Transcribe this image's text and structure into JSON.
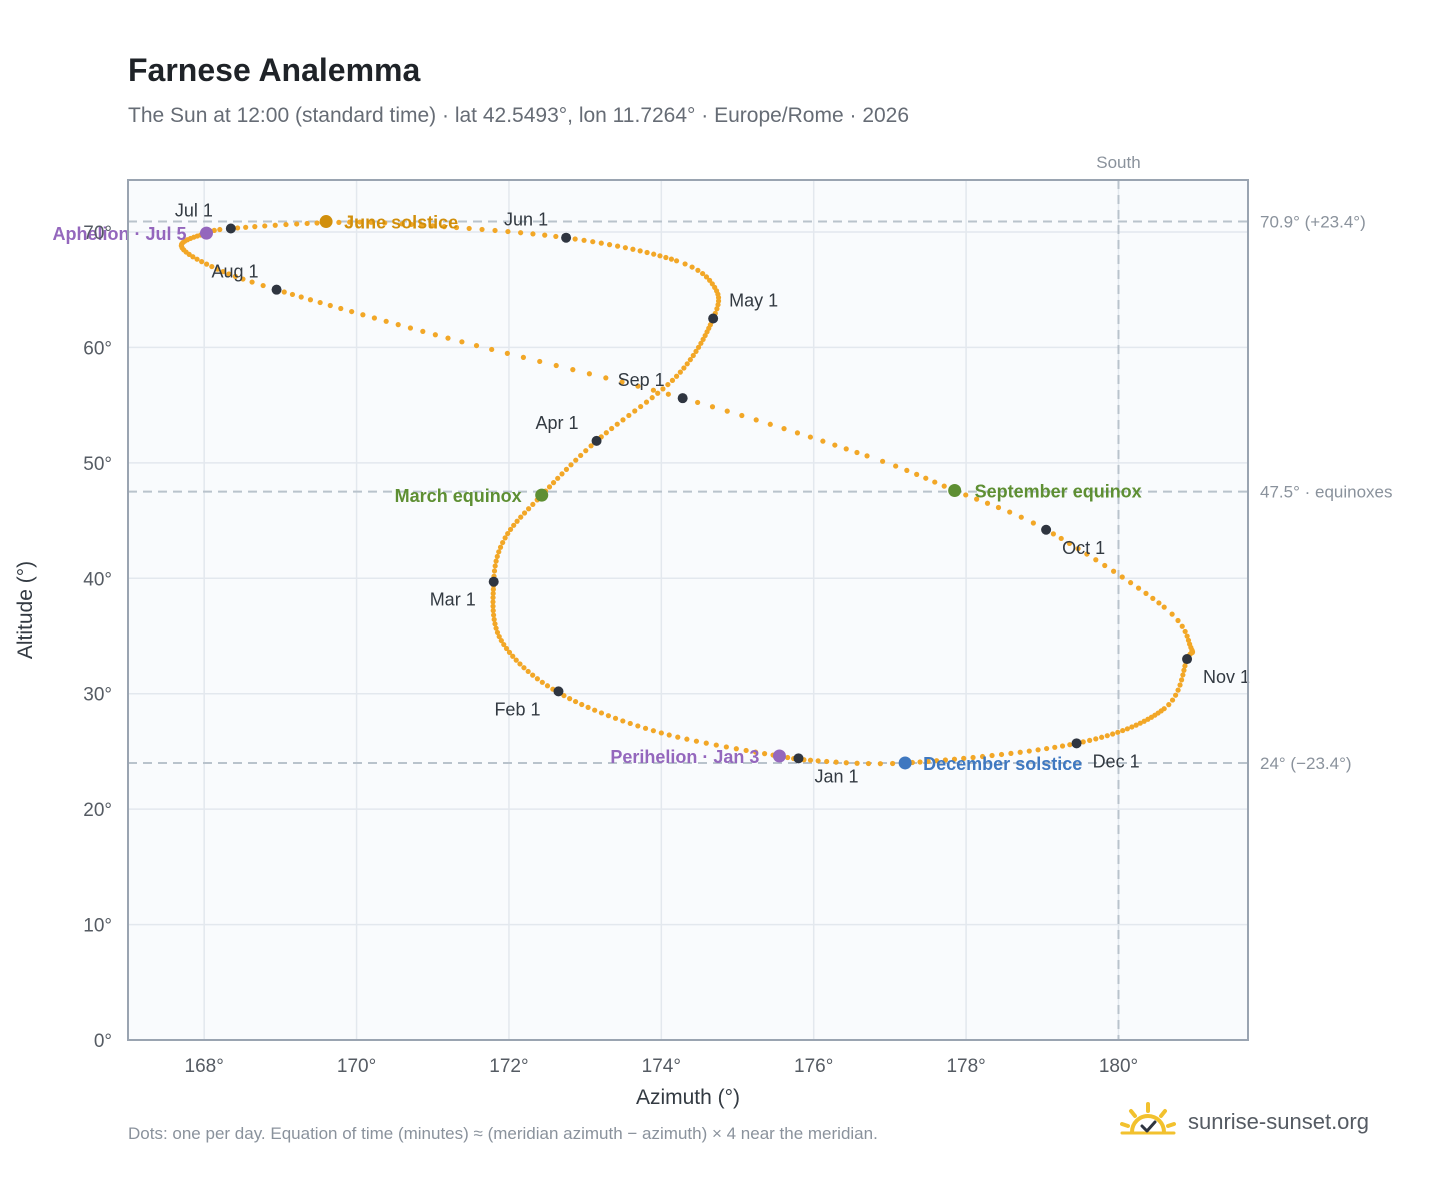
{
  "title": "Farnese Analemma",
  "subtitle": "The Sun at 12:00 (standard time) · lat 42.5493°, lon 11.7264° · Europe/Rome · 2026",
  "footnote": "Dots: one per day. Equation of time (minutes) ≈ (meridian azimuth − azimuth) × 4 near the meridian.",
  "brand": {
    "text": "sunrise-sunset.org",
    "icon": "sun-check-icon"
  },
  "colors": {
    "curve": "#f2a727",
    "month_dot": "#2f3540",
    "june_solstice": "#d18f0c",
    "december_solstice": "#3f78c0",
    "equinox": "#5e8f33",
    "apsis": "#9467bd",
    "reference_line": "#b9c3cc",
    "plot_background": "#f9fbfd"
  },
  "chart_data": {
    "type": "scatter",
    "xlabel": "Azimuth (°)",
    "ylabel": "Altitude (°)",
    "xlim": [
      167,
      181.7
    ],
    "ylim": [
      0,
      74.5
    ],
    "x_ticks": [
      168,
      170,
      172,
      174,
      176,
      178,
      180
    ],
    "x_tick_labels": [
      "168°",
      "170°",
      "172°",
      "174°",
      "176°",
      "178°",
      "180°"
    ],
    "y_ticks": [
      0,
      10,
      20,
      30,
      40,
      50,
      60,
      70
    ],
    "y_tick_labels": [
      "0°",
      "10°",
      "20°",
      "30°",
      "40°",
      "50°",
      "60°",
      "70°"
    ],
    "grid": true,
    "meridian": {
      "x": 180,
      "label": "South"
    },
    "reference_lines": [
      {
        "y": 70.9,
        "label": "70.9° (+23.4°)"
      },
      {
        "y": 47.5,
        "label": "47.5° · equinoxes"
      },
      {
        "y": 24.0,
        "label": "24° (−23.4°)"
      }
    ],
    "daily_path": {
      "name": "Dots: one per day",
      "anchors": [
        {
          "day": 0,
          "az": 175.8,
          "alt": 24.3
        },
        {
          "day": 16,
          "az": 174.0,
          "alt": 26.6
        },
        {
          "day": 31,
          "az": 172.65,
          "alt": 30.1
        },
        {
          "day": 45,
          "az": 171.9,
          "alt": 34.6
        },
        {
          "day": 59,
          "az": 171.8,
          "alt": 39.7
        },
        {
          "day": 68,
          "az": 171.95,
          "alt": 43.5
        },
        {
          "day": 78,
          "az": 172.43,
          "alt": 47.2
        },
        {
          "day": 90,
          "az": 173.15,
          "alt": 51.9
        },
        {
          "day": 105,
          "az": 174.2,
          "alt": 57.5
        },
        {
          "day": 120,
          "az": 174.68,
          "alt": 62.5
        },
        {
          "day": 128,
          "az": 174.7,
          "alt": 65.2
        },
        {
          "day": 136,
          "az": 174.2,
          "alt": 67.5
        },
        {
          "day": 151,
          "az": 172.75,
          "alt": 69.5
        },
        {
          "day": 165,
          "az": 170.6,
          "alt": 70.7
        },
        {
          "day": 171,
          "az": 169.6,
          "alt": 70.8
        },
        {
          "day": 181,
          "az": 168.35,
          "alt": 70.3
        },
        {
          "day": 185,
          "az": 168.03,
          "alt": 69.9
        },
        {
          "day": 195,
          "az": 167.7,
          "alt": 68.8
        },
        {
          "day": 204,
          "az": 168.1,
          "alt": 67.0
        },
        {
          "day": 212,
          "az": 168.95,
          "alt": 65.0
        },
        {
          "day": 228,
          "az": 171.2,
          "alt": 60.8
        },
        {
          "day": 243,
          "az": 174.28,
          "alt": 55.6
        },
        {
          "day": 257,
          "az": 176.7,
          "alt": 50.6
        },
        {
          "day": 265,
          "az": 177.85,
          "alt": 47.6
        },
        {
          "day": 273,
          "az": 179.05,
          "alt": 44.2
        },
        {
          "day": 288,
          "az": 180.6,
          "alt": 37.5
        },
        {
          "day": 296,
          "az": 180.95,
          "alt": 34.0
        },
        {
          "day": 304,
          "az": 180.9,
          "alt": 33.0
        },
        {
          "day": 315,
          "az": 180.6,
          "alt": 28.7
        },
        {
          "day": 334,
          "az": 179.45,
          "alt": 25.7
        },
        {
          "day": 354,
          "az": 177.2,
          "alt": 24.0
        },
        {
          "day": 365,
          "az": 175.8,
          "alt": 24.3
        }
      ]
    },
    "month_markers": [
      {
        "label": "Jan 1",
        "az": 175.8,
        "alt": 24.4,
        "anchor": "start",
        "dx": 16,
        "dy": 24
      },
      {
        "label": "Feb 1",
        "az": 172.65,
        "alt": 30.2,
        "anchor": "end",
        "dx": -18,
        "dy": 24
      },
      {
        "label": "Mar 1",
        "az": 171.8,
        "alt": 39.7,
        "anchor": "end",
        "dx": -18,
        "dy": 24
      },
      {
        "label": "Apr 1",
        "az": 173.15,
        "alt": 51.9,
        "anchor": "end",
        "dx": -18,
        "dy": -12
      },
      {
        "label": "May 1",
        "az": 174.68,
        "alt": 62.5,
        "anchor": "start",
        "dx": 16,
        "dy": -12
      },
      {
        "label": "Jun 1",
        "az": 172.75,
        "alt": 69.5,
        "anchor": "end",
        "dx": -18,
        "dy": -12
      },
      {
        "label": "Jul 1",
        "az": 168.35,
        "alt": 70.3,
        "anchor": "end",
        "dx": -18,
        "dy": -12
      },
      {
        "label": "Aug 1",
        "az": 168.95,
        "alt": 65.0,
        "anchor": "end",
        "dx": -18,
        "dy": -12
      },
      {
        "label": "Sep 1",
        "az": 174.28,
        "alt": 55.6,
        "anchor": "end",
        "dx": -18,
        "dy": -12
      },
      {
        "label": "Oct 1",
        "az": 179.05,
        "alt": 44.2,
        "anchor": "start",
        "dx": 16,
        "dy": 24
      },
      {
        "label": "Nov 1",
        "az": 180.9,
        "alt": 33.0,
        "anchor": "start",
        "dx": 16,
        "dy": 24
      },
      {
        "label": "Dec 1",
        "az": 179.45,
        "alt": 25.7,
        "anchor": "start",
        "dx": 16,
        "dy": 24
      }
    ],
    "events": [
      {
        "label": "June solstice",
        "az": 169.6,
        "alt": 70.9,
        "color": "#d18f0c",
        "anchor": "start",
        "dx": 18,
        "dy": 7
      },
      {
        "label": "December solstice",
        "az": 177.2,
        "alt": 24.0,
        "color": "#3f78c0",
        "anchor": "start",
        "dx": 18,
        "dy": 7
      },
      {
        "label": "March equinox",
        "az": 172.43,
        "alt": 47.2,
        "color": "#5e8f33",
        "anchor": "end",
        "dx": -20,
        "dy": 7
      },
      {
        "label": "September equinox",
        "az": 177.85,
        "alt": 47.6,
        "color": "#5e8f33",
        "anchor": "start",
        "dx": 20,
        "dy": 7
      },
      {
        "label": "Perihelion · Jan 3",
        "az": 175.55,
        "alt": 24.6,
        "color": "#9467bd",
        "anchor": "end",
        "dx": -20,
        "dy": 7
      },
      {
        "label": "Aphelion · Jul 5",
        "az": 168.03,
        "alt": 69.9,
        "color": "#9467bd",
        "anchor": "end",
        "dx": -20,
        "dy": 7
      }
    ]
  }
}
